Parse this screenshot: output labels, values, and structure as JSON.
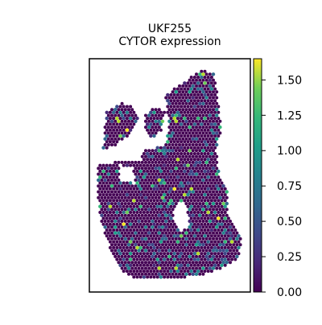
{
  "chart_data": {
    "type": "scatter",
    "title": "UKF255",
    "subtitle": "CYTOR expression",
    "xlabel": "",
    "ylabel": "",
    "grid": false,
    "legend": "colorbar-right",
    "colormap": "viridis",
    "color_range": [
      0,
      1.65
    ],
    "colorbar_ticks": [
      "0.00",
      "0.25",
      "0.50",
      "0.75",
      "1.00",
      "1.25",
      "1.50"
    ],
    "colorbar_tick_values": [
      0,
      0.25,
      0.5,
      0.75,
      1.0,
      1.25,
      1.5
    ],
    "background_spot_color": "#440154",
    "frame_color": "#000000"
  }
}
